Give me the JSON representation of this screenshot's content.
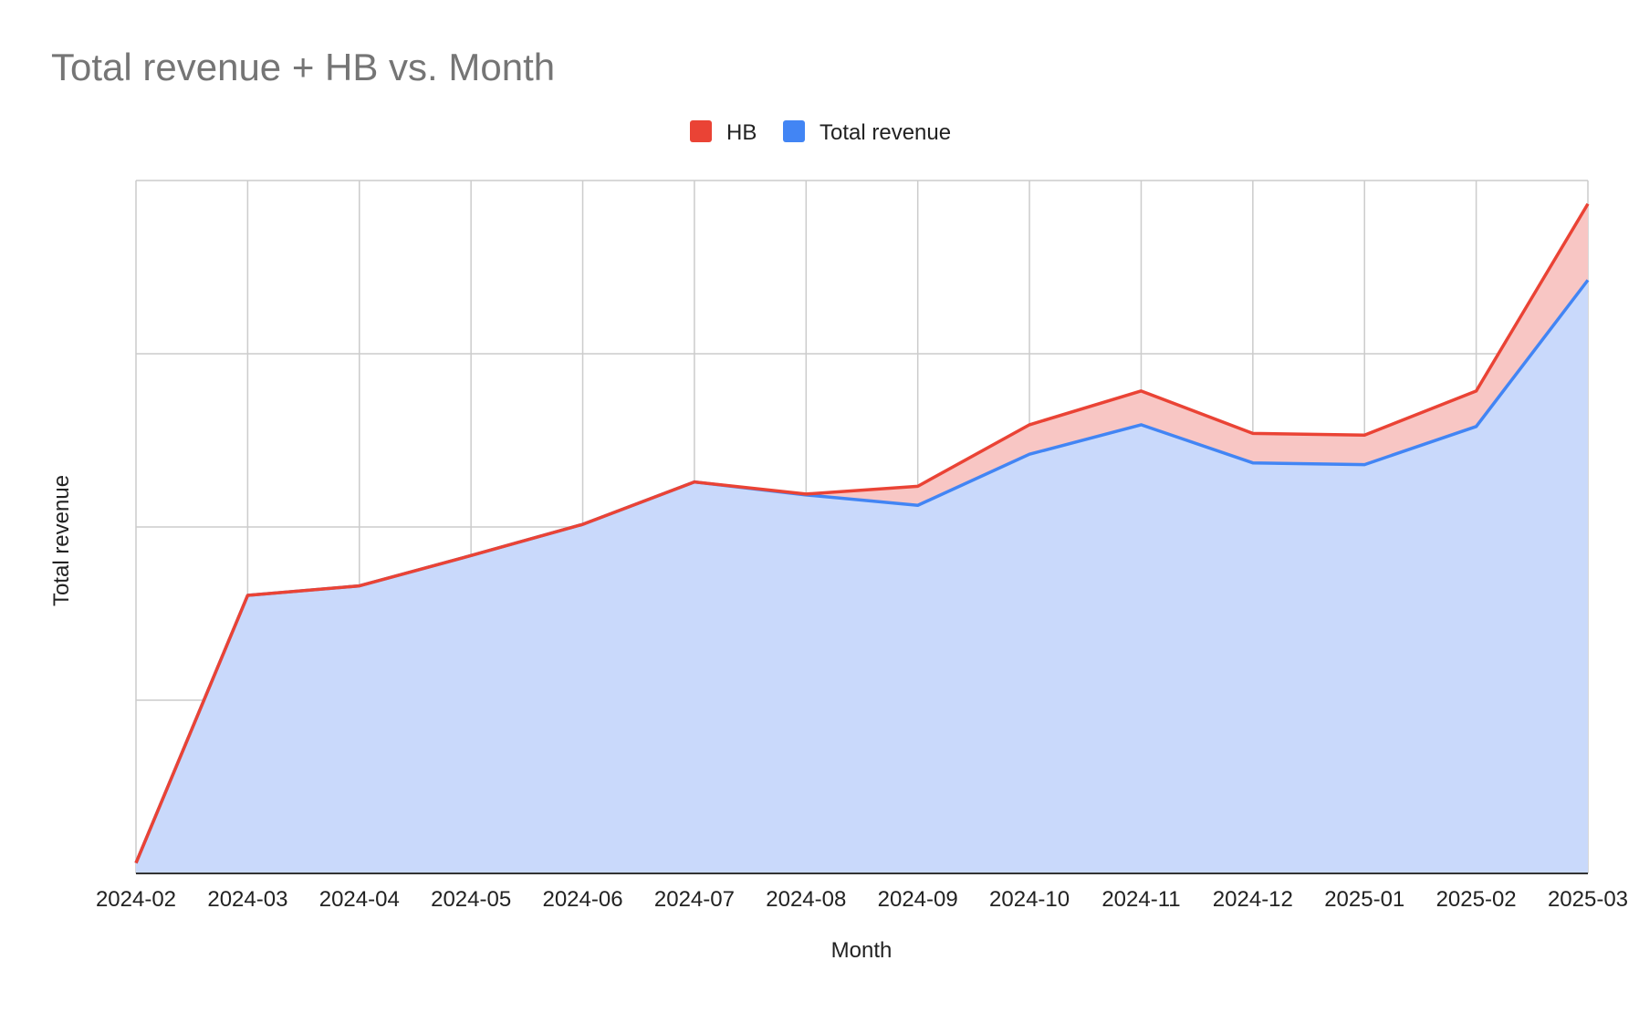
{
  "chart_data": {
    "type": "area",
    "stacked": true,
    "title": "Total revenue + HB vs. Month",
    "xlabel": "Month",
    "ylabel": "Total revenue",
    "categories": [
      "2024-02",
      "2024-03",
      "2024-04",
      "2024-05",
      "2024-06",
      "2024-07",
      "2024-08",
      "2024-09",
      "2024-10",
      "2024-11",
      "2024-12",
      "2025-01",
      "2025-02",
      "2025-03"
    ],
    "series": [
      {
        "name": "Total revenue",
        "color": "#4285f4",
        "fill": "#c9d9fb",
        "values": [
          0.12,
          3.21,
          3.32,
          3.67,
          4.03,
          4.52,
          4.37,
          4.25,
          4.84,
          5.18,
          4.74,
          4.72,
          5.16,
          6.85
        ]
      },
      {
        "name": "HB",
        "color": "#ea4335",
        "fill": "#f8c6c4",
        "values": [
          0.0,
          0.0,
          0.0,
          0.0,
          0.0,
          0.0,
          0.01,
          0.22,
          0.34,
          0.39,
          0.34,
          0.34,
          0.41,
          0.88
        ]
      }
    ],
    "ylim": [
      0,
      8
    ],
    "ytick_step": 2,
    "y_tick_labels_shown": false,
    "grid": true,
    "legend_position": "top-center",
    "legend_order": [
      "HB",
      "Total revenue"
    ]
  }
}
